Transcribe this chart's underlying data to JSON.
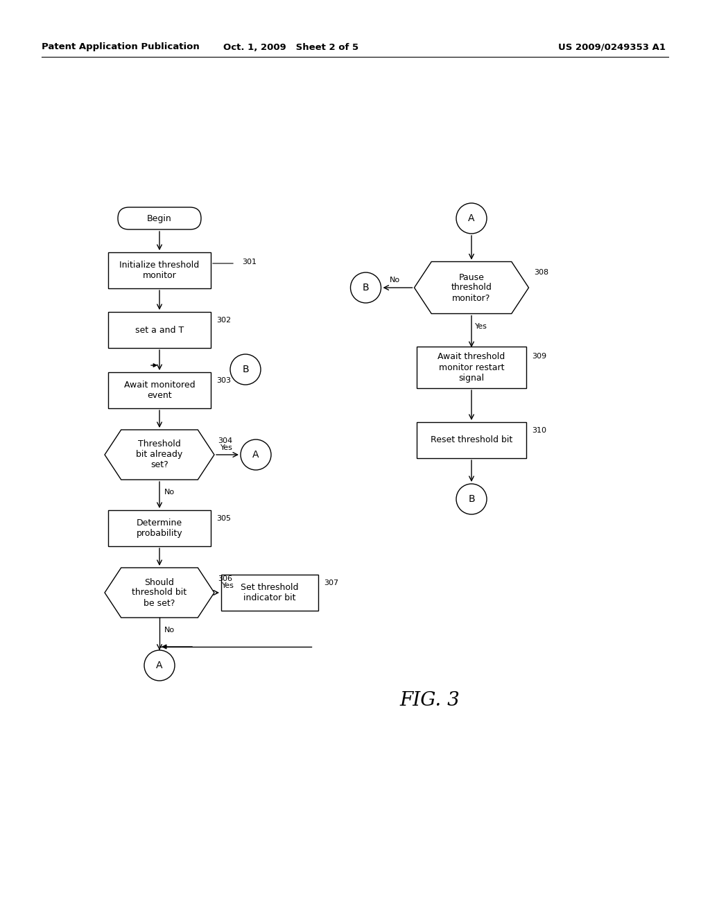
{
  "bg_color": "#ffffff",
  "header_left": "Patent Application Publication",
  "header_mid": "Oct. 1, 2009   Sheet 2 of 5",
  "header_right": "US 2009/0249353 A1",
  "fig_label": "FIG. 3",
  "line_color": "#000000",
  "text_color": "#000000",
  "font_size": 9,
  "header_font_size": 9.5
}
